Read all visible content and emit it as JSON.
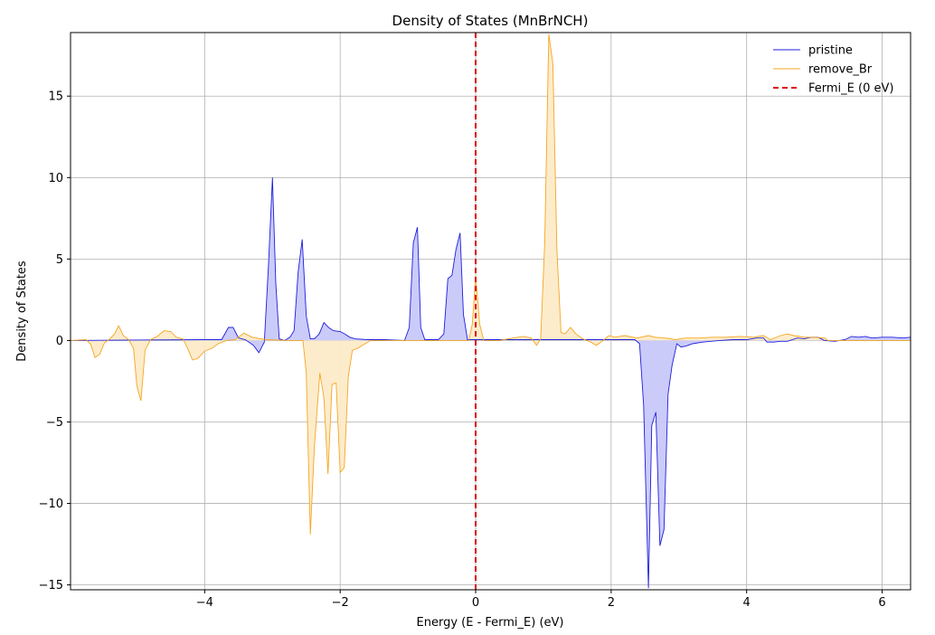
{
  "chart_data": {
    "type": "area",
    "title": "Density of States (MnBrNCH)",
    "xlabel": "Energy (E - Fermi_E) (eV)",
    "ylabel": "Density of States",
    "xlim": [
      -5.98,
      6.42
    ],
    "ylim": [
      -15.3,
      18.9
    ],
    "xticks": [
      -4,
      -2,
      0,
      2,
      4,
      6
    ],
    "xtick_labels": [
      "−4",
      "−2",
      "0",
      "2",
      "4",
      "6"
    ],
    "yticks": [
      -15,
      -10,
      -5,
      0,
      5,
      10,
      15
    ],
    "ytick_labels": [
      "−15",
      "−10",
      "−5",
      "0",
      "5",
      "10",
      "15"
    ],
    "grid": true,
    "legend_position": "top-right",
    "vline": {
      "name": "Fermi_E (0 eV)",
      "x": 0,
      "color": "#dd0000",
      "style": "dashed"
    },
    "series": [
      {
        "name": "pristine",
        "color": "#1f1fdd",
        "fill": "#c8c8fa",
        "points": [
          [
            -5.98,
            0
          ],
          [
            -4.0,
            0.05
          ],
          [
            -3.75,
            0.05
          ],
          [
            -3.65,
            0.8
          ],
          [
            -3.58,
            0.8
          ],
          [
            -3.5,
            0.15
          ],
          [
            -3.4,
            0.05
          ],
          [
            -3.28,
            -0.3
          ],
          [
            -3.2,
            -0.75
          ],
          [
            -3.12,
            -0.1
          ],
          [
            -3.06,
            4.5
          ],
          [
            -3.0,
            10.0
          ],
          [
            -2.95,
            3.5
          ],
          [
            -2.9,
            0.1
          ],
          [
            -2.82,
            0.0
          ],
          [
            -2.74,
            0.2
          ],
          [
            -2.68,
            0.6
          ],
          [
            -2.62,
            4.2
          ],
          [
            -2.56,
            6.2
          ],
          [
            -2.5,
            1.5
          ],
          [
            -2.44,
            0.1
          ],
          [
            -2.38,
            0.1
          ],
          [
            -2.31,
            0.4
          ],
          [
            -2.24,
            1.1
          ],
          [
            -2.17,
            0.8
          ],
          [
            -2.1,
            0.6
          ],
          [
            -2.0,
            0.55
          ],
          [
            -1.93,
            0.4
          ],
          [
            -1.86,
            0.2
          ],
          [
            -1.78,
            0.1
          ],
          [
            -1.6,
            0.05
          ],
          [
            -1.35,
            0.05
          ],
          [
            -1.05,
            0.0
          ],
          [
            -0.98,
            0.8
          ],
          [
            -0.92,
            6.0
          ],
          [
            -0.86,
            6.95
          ],
          [
            -0.81,
            0.8
          ],
          [
            -0.75,
            0.05
          ],
          [
            -0.55,
            0.05
          ],
          [
            -0.47,
            0.4
          ],
          [
            -0.41,
            3.8
          ],
          [
            -0.35,
            4.0
          ],
          [
            -0.29,
            5.6
          ],
          [
            -0.23,
            6.6
          ],
          [
            -0.18,
            1.6
          ],
          [
            -0.12,
            0.05
          ],
          [
            0.5,
            0.05
          ],
          [
            1.0,
            0.05
          ],
          [
            1.5,
            0.05
          ],
          [
            2.0,
            0.05
          ],
          [
            2.35,
            0.05
          ],
          [
            2.42,
            -0.2
          ],
          [
            2.48,
            -4.0
          ],
          [
            2.55,
            -15.2
          ],
          [
            2.6,
            -5.2
          ],
          [
            2.66,
            -4.4
          ],
          [
            2.72,
            -12.6
          ],
          [
            2.78,
            -11.6
          ],
          [
            2.84,
            -3.3
          ],
          [
            2.9,
            -1.5
          ],
          [
            2.97,
            -0.2
          ],
          [
            3.03,
            -0.4
          ],
          [
            3.1,
            -0.35
          ],
          [
            3.2,
            -0.2
          ],
          [
            3.35,
            -0.1
          ],
          [
            3.6,
            0.0
          ],
          [
            3.8,
            0.05
          ],
          [
            4.0,
            0.05
          ],
          [
            4.15,
            0.15
          ],
          [
            4.25,
            0.15
          ],
          [
            4.3,
            -0.1
          ],
          [
            4.4,
            -0.1
          ],
          [
            4.5,
            -0.05
          ],
          [
            4.6,
            -0.05
          ],
          [
            4.75,
            0.15
          ],
          [
            4.85,
            0.1
          ],
          [
            4.95,
            0.2
          ],
          [
            5.05,
            0.2
          ],
          [
            5.15,
            0.0
          ],
          [
            5.3,
            -0.05
          ],
          [
            5.45,
            0.05
          ],
          [
            5.55,
            0.25
          ],
          [
            5.65,
            0.2
          ],
          [
            5.75,
            0.25
          ],
          [
            5.85,
            0.15
          ],
          [
            6.0,
            0.2
          ],
          [
            6.15,
            0.2
          ],
          [
            6.3,
            0.15
          ],
          [
            6.42,
            0.2
          ]
        ]
      },
      {
        "name": "remove_Br",
        "color": "#f5a623",
        "fill": "#fdebc8",
        "points": [
          [
            -5.98,
            0
          ],
          [
            -5.75,
            0.05
          ],
          [
            -5.68,
            -0.25
          ],
          [
            -5.62,
            -1.05
          ],
          [
            -5.55,
            -0.85
          ],
          [
            -5.48,
            -0.15
          ],
          [
            -5.4,
            0.1
          ],
          [
            -5.33,
            0.4
          ],
          [
            -5.27,
            0.9
          ],
          [
            -5.2,
            0.3
          ],
          [
            -5.12,
            0.05
          ],
          [
            -5.05,
            -0.5
          ],
          [
            -5.0,
            -2.8
          ],
          [
            -4.94,
            -3.7
          ],
          [
            -4.88,
            -0.6
          ],
          [
            -4.8,
            0.05
          ],
          [
            -4.7,
            0.25
          ],
          [
            -4.6,
            0.6
          ],
          [
            -4.5,
            0.55
          ],
          [
            -4.42,
            0.2
          ],
          [
            -4.32,
            0.1
          ],
          [
            -4.25,
            -0.5
          ],
          [
            -4.18,
            -1.2
          ],
          [
            -4.1,
            -1.1
          ],
          [
            -4.0,
            -0.65
          ],
          [
            -3.9,
            -0.5
          ],
          [
            -3.8,
            -0.2
          ],
          [
            -3.68,
            0.0
          ],
          [
            -3.55,
            0.05
          ],
          [
            -3.42,
            0.45
          ],
          [
            -3.3,
            0.2
          ],
          [
            -3.1,
            0.05
          ],
          [
            -2.75,
            0.0
          ],
          [
            -2.55,
            0.0
          ],
          [
            -2.5,
            -2.0
          ],
          [
            -2.44,
            -11.9
          ],
          [
            -2.38,
            -6.5
          ],
          [
            -2.3,
            -2.0
          ],
          [
            -2.24,
            -3.5
          ],
          [
            -2.18,
            -8.2
          ],
          [
            -2.12,
            -2.7
          ],
          [
            -2.06,
            -2.6
          ],
          [
            -2.0,
            -8.1
          ],
          [
            -1.94,
            -7.8
          ],
          [
            -1.88,
            -2.2
          ],
          [
            -1.82,
            -0.6
          ],
          [
            -1.75,
            -0.5
          ],
          [
            -1.65,
            -0.25
          ],
          [
            -1.55,
            0.0
          ],
          [
            -0.9,
            0.0
          ],
          [
            -0.1,
            0.0
          ],
          [
            -0.05,
            1.0
          ],
          [
            0.0,
            4.0
          ],
          [
            0.06,
            1.0
          ],
          [
            0.12,
            0.0
          ],
          [
            0.35,
            0.0
          ],
          [
            0.55,
            0.15
          ],
          [
            0.7,
            0.25
          ],
          [
            0.82,
            0.15
          ],
          [
            0.9,
            -0.3
          ],
          [
            0.96,
            0.1
          ],
          [
            1.02,
            6.0
          ],
          [
            1.08,
            18.8
          ],
          [
            1.14,
            17.0
          ],
          [
            1.2,
            5.5
          ],
          [
            1.26,
            0.5
          ],
          [
            1.32,
            0.4
          ],
          [
            1.4,
            0.8
          ],
          [
            1.48,
            0.4
          ],
          [
            1.58,
            0.1
          ],
          [
            1.7,
            -0.1
          ],
          [
            1.78,
            -0.3
          ],
          [
            1.88,
            0.0
          ],
          [
            1.97,
            0.3
          ],
          [
            2.05,
            0.2
          ],
          [
            2.2,
            0.3
          ],
          [
            2.38,
            0.15
          ],
          [
            2.55,
            0.3
          ],
          [
            2.65,
            0.2
          ],
          [
            2.8,
            0.15
          ],
          [
            2.95,
            0.05
          ],
          [
            3.1,
            0.15
          ],
          [
            3.3,
            0.15
          ],
          [
            3.5,
            0.2
          ],
          [
            3.7,
            0.2
          ],
          [
            3.9,
            0.25
          ],
          [
            4.1,
            0.2
          ],
          [
            4.25,
            0.3
          ],
          [
            4.35,
            0.05
          ],
          [
            4.5,
            0.3
          ],
          [
            4.6,
            0.4
          ],
          [
            4.7,
            0.3
          ],
          [
            4.85,
            0.2
          ],
          [
            5.0,
            0.2
          ],
          [
            5.15,
            0.15
          ],
          [
            5.2,
            0.0
          ],
          [
            6.42,
            0.0
          ]
        ]
      }
    ]
  }
}
